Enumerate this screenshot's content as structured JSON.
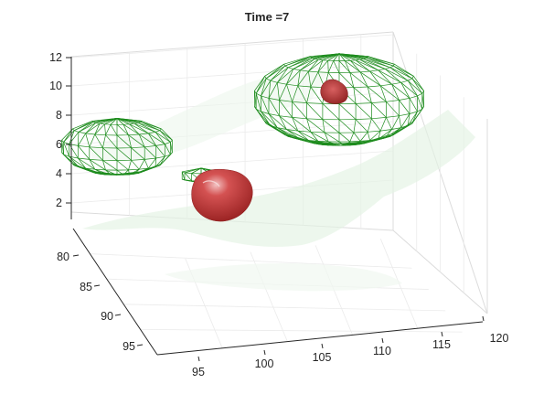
{
  "chart_data": {
    "type": "3d-isosurface",
    "title": "Time =7",
    "grid": true,
    "x_axis": {
      "label": "",
      "ticks": [
        "95",
        "100",
        "105",
        "110",
        "115",
        "120"
      ]
    },
    "y_axis": {
      "label": "",
      "ticks": [
        "80",
        "85",
        "90",
        "95"
      ]
    },
    "z_axis": {
      "label": "",
      "ticks": [
        "2",
        "4",
        "6",
        "8",
        "10",
        "12"
      ]
    },
    "surfaces": [
      {
        "style": "wireframe",
        "color": "#1e8c1e"
      },
      {
        "style": "solid-shaded",
        "color": "#c83232"
      },
      {
        "style": "translucent",
        "color": "#d8eed8"
      }
    ]
  }
}
